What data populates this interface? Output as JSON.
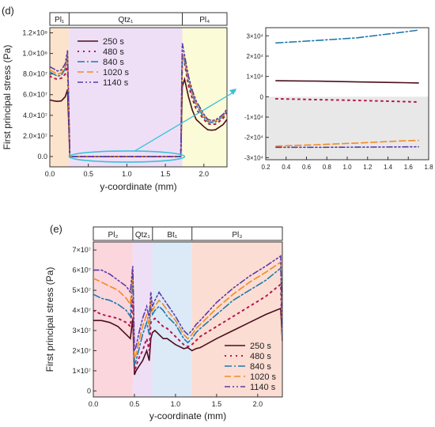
{
  "panels": [
    {
      "label": "(d)"
    },
    {
      "label": "(e)"
    }
  ],
  "colors": {
    "s250": "#4a0f1c",
    "s480": "#b5174e",
    "s840": "#1f79ad",
    "s1020": "#f28b22",
    "s1140": "#5a3aa8",
    "inset_arrow": "#3bc1d8",
    "pl_band": "#fbe3cc",
    "qtz_band": "#eedff7",
    "pl4_band": "#fbfbd8",
    "pl2_band": "#fbd6dd",
    "bt_band": "#dce9f7",
    "pl3_band": "#fbddd3",
    "inset_negative_region": "#e8e8e8"
  },
  "chart_data": [
    {
      "id": "d_main",
      "type": "line",
      "title": "",
      "xlabel": "y-coordinate (mm)",
      "ylabel": "First principal stress (Pa)",
      "xlim": [
        0,
        2.3
      ],
      "ylim": [
        -10000000.0,
        125000000.0
      ],
      "xticks": [
        0.0,
        0.5,
        1.0,
        1.5,
        2.0
      ],
      "xtick_labels": [
        "0.0",
        "0.5",
        "1.0",
        "1.5",
        "2.0"
      ],
      "yticks": [
        0,
        20000000.0,
        40000000.0,
        60000000.0,
        80000000.0,
        100000000.0,
        120000000.0
      ],
      "ytick_labels": [
        "0.0",
        "2.0×10⁷",
        "4.0×10⁷",
        "6.0×10⁷",
        "8.0×10⁷",
        "1.0×10⁸",
        "1.2×10⁸"
      ],
      "legend_position": "top-center",
      "grain_bar": [
        {
          "name": "Pl₁",
          "x0": 0.0,
          "x1": 0.25
        },
        {
          "name": "Qtz₁",
          "x0": 0.25,
          "x1": 1.72
        },
        {
          "name": "Pl₄",
          "x0": 1.72,
          "x1": 2.3
        }
      ],
      "series": [
        {
          "name": "250 s",
          "x": [
            0,
            0.05,
            0.1,
            0.15,
            0.2,
            0.23,
            0.26,
            0.3,
            1.0,
            1.7,
            1.72,
            1.75,
            1.8,
            1.85,
            1.9,
            2.0,
            2.05,
            2.1,
            2.15,
            2.2,
            2.25,
            2.3
          ],
          "y": [
            55000000.0,
            54000000.0,
            53500000.0,
            54000000.0,
            58000000.0,
            65000000.0,
            0,
            0,
            0,
            0,
            68000000.0,
            75000000.0,
            58000000.0,
            45000000.0,
            36000000.0,
            29000000.0,
            26000000.0,
            25500000.0,
            26000000.0,
            28500000.0,
            31000000.0,
            36000000.0
          ]
        },
        {
          "name": "480 s",
          "x": [
            0,
            0.05,
            0.1,
            0.15,
            0.2,
            0.23,
            0.26,
            0.3,
            1.0,
            1.7,
            1.72,
            1.75,
            1.8,
            1.85,
            1.9,
            2.0,
            2.05,
            2.1,
            2.15,
            2.2,
            2.25,
            2.3
          ],
          "y": [
            78000000.0,
            76000000.0,
            75000000.0,
            76000000.0,
            80000000.0,
            90000000.0,
            0,
            0,
            0,
            0,
            93000000.0,
            90000000.0,
            69000000.0,
            56000000.0,
            46000000.0,
            36000000.0,
            32000000.0,
            31000000.0,
            31500000.0,
            34000000.0,
            37000000.0,
            42000000.0
          ]
        },
        {
          "name": "840 s",
          "x": [
            0,
            0.05,
            0.1,
            0.15,
            0.2,
            0.23,
            0.26,
            0.3,
            1.0,
            1.7,
            1.72,
            1.75,
            1.8,
            1.85,
            1.9,
            2.0,
            2.05,
            2.1,
            2.15,
            2.2,
            2.25,
            2.3
          ],
          "y": [
            82000000.0,
            80000000.0,
            78000000.0,
            79000000.0,
            85000000.0,
            98000000.0,
            0,
            0,
            0,
            0,
            98000000.0,
            93000000.0,
            73000000.0,
            60000000.0,
            50000000.0,
            38000000.0,
            34000000.0,
            33000000.0,
            33500000.0,
            36000000.0,
            39000000.0,
            44000000.0
          ]
        },
        {
          "name": "1020 s",
          "x": [
            0,
            0.05,
            0.1,
            0.15,
            0.2,
            0.23,
            0.26,
            0.3,
            1.0,
            1.7,
            1.72,
            1.75,
            1.8,
            1.85,
            1.9,
            2.0,
            2.05,
            2.1,
            2.15,
            2.2,
            2.25,
            2.3
          ],
          "y": [
            84000000.0,
            82000000.0,
            80000000.0,
            81000000.0,
            87000000.0,
            100000000.0,
            0,
            0,
            0,
            0,
            100000000.0,
            95000000.0,
            75000000.0,
            62000000.0,
            52000000.0,
            40000000.0,
            35000000.0,
            34000000.0,
            34500000.0,
            37000000.0,
            40000000.0,
            45000000.0
          ]
        },
        {
          "name": "1140 s",
          "x": [
            0,
            0.05,
            0.1,
            0.15,
            0.2,
            0.23,
            0.26,
            0.3,
            1.0,
            1.7,
            1.72,
            1.75,
            1.8,
            1.85,
            1.9,
            2.0,
            2.05,
            2.1,
            2.15,
            2.2,
            2.25,
            2.3
          ],
          "y": [
            87000000.0,
            85000000.0,
            83000000.0,
            84000000.0,
            90000000.0,
            103000000.0,
            0,
            0,
            0,
            0,
            110000000.0,
            98000000.0,
            78000000.0,
            64000000.0,
            54000000.0,
            41000000.0,
            36000000.0,
            35000000.0,
            35500000.0,
            38000000.0,
            41000000.0,
            46000000.0
          ]
        }
      ]
    },
    {
      "id": "d_inset",
      "type": "line",
      "title": "",
      "xlabel": "",
      "ylabel": "",
      "xlim": [
        0.2,
        1.8
      ],
      "ylim": [
        -31000.0,
        34000.0
      ],
      "xticks": [
        0.2,
        0.4,
        0.6,
        0.8,
        1.0,
        1.2,
        1.4,
        1.6,
        1.8
      ],
      "xtick_labels": [
        "0.2",
        "0.4",
        "0.6",
        "0.8",
        "1.0",
        "1.2",
        "1.4",
        "1.6",
        "1.8"
      ],
      "yticks": [
        -30000.0,
        -20000.0,
        -10000.0,
        0,
        10000.0,
        20000.0,
        30000.0
      ],
      "ytick_labels": [
        "-3×10⁴",
        "-2×10⁴",
        "-1×10⁴",
        "0",
        "1×10⁴",
        "2×10⁴",
        "3×10⁴"
      ],
      "series": [
        {
          "name": "250 s",
          "x": [
            0.3,
            0.7,
            1.1,
            1.5,
            1.7
          ],
          "y": [
            7900,
            7700,
            7300,
            7000,
            6800
          ]
        },
        {
          "name": "480 s",
          "x": [
            0.3,
            0.7,
            1.1,
            1.5,
            1.7
          ],
          "y": [
            -1000,
            -1400,
            -1800,
            -2300,
            -2600
          ]
        },
        {
          "name": "840 s",
          "x": [
            0.3,
            0.7,
            1.1,
            1.5,
            1.7
          ],
          "y": [
            26500,
            27700,
            29000,
            31500,
            32800
          ]
        },
        {
          "name": "1020 s",
          "x": [
            0.3,
            0.7,
            1.1,
            1.5,
            1.7
          ],
          "y": [
            -24300,
            -23600,
            -22800,
            -21800,
            -21500
          ]
        },
        {
          "name": "1140 s",
          "x": [
            0.3,
            0.7,
            1.1,
            1.5,
            1.7
          ],
          "y": [
            -24900,
            -24900,
            -24800,
            -24700,
            -24600
          ]
        }
      ]
    },
    {
      "id": "e_main",
      "type": "line",
      "title": "",
      "xlabel": "y-coordinate (mm)",
      "ylabel": "First principal stress (Pa)",
      "xlim": [
        0,
        2.3
      ],
      "ylim": [
        -3000000.0,
        74000000.0
      ],
      "xticks": [
        0.0,
        0.5,
        1.0,
        1.5,
        2.0
      ],
      "xtick_labels": [
        "0.0",
        "0.5",
        "1.0",
        "1.5",
        "2.0"
      ],
      "yticks": [
        0,
        10000000.0,
        20000000.0,
        30000000.0,
        40000000.0,
        50000000.0,
        60000000.0,
        70000000.0
      ],
      "ytick_labels": [
        "0",
        "1×10⁷",
        "2×10⁷",
        "3×10⁷",
        "4×10⁷",
        "5×10⁷",
        "6×10⁷",
        "7×10⁷"
      ],
      "legend_position": "bottom-right",
      "grain_bar": [
        {
          "name": "Pl₂",
          "x0": 0.0,
          "x1": 0.48
        },
        {
          "name": "Qtz₁",
          "x0": 0.48,
          "x1": 0.72
        },
        {
          "name": "Bt₁",
          "x0": 0.72,
          "x1": 1.2
        },
        {
          "name": "Pl₃",
          "x0": 1.2,
          "x1": 2.3
        }
      ],
      "series": [
        {
          "name": "250 s",
          "x": [
            0,
            0.1,
            0.2,
            0.3,
            0.4,
            0.45,
            0.48,
            0.5,
            0.52,
            0.55,
            0.6,
            0.65,
            0.68,
            0.7,
            0.72,
            0.75,
            0.8,
            0.85,
            0.9,
            1.0,
            1.1,
            1.15,
            1.2,
            1.25,
            1.3,
            1.5,
            1.7,
            1.9,
            2.1,
            2.28,
            2.3
          ],
          "y": [
            35000000.0,
            35000000.0,
            34000000.0,
            32000000.0,
            28000000.0,
            26000000.0,
            36000000.0,
            8000000.0,
            10000000.0,
            12000000.0,
            15000000.0,
            20000000.0,
            15000000.0,
            26000000.0,
            29000000.0,
            30000000.0,
            28000000.0,
            26000000.0,
            26000000.0,
            23000000.0,
            21000000.0,
            21500000.0,
            20000000.0,
            21000000.0,
            21500000.0,
            26000000.0,
            30000000.0,
            34000000.0,
            38000000.0,
            41000000.0,
            25000000.0
          ]
        },
        {
          "name": "480 s",
          "x": [
            0,
            0.1,
            0.2,
            0.3,
            0.4,
            0.45,
            0.48,
            0.5,
            0.52,
            0.55,
            0.6,
            0.65,
            0.68,
            0.7,
            0.72,
            0.75,
            0.8,
            0.85,
            0.9,
            1.0,
            1.1,
            1.15,
            1.2,
            1.25,
            1.3,
            1.5,
            1.7,
            1.9,
            2.1,
            2.28,
            2.3
          ],
          "y": [
            40000000.0,
            38000000.0,
            37000000.0,
            36000000.0,
            34000000.0,
            32000000.0,
            46000000.0,
            10000000.0,
            12000000.0,
            16000000.0,
            20000000.0,
            26000000.0,
            20000000.0,
            34000000.0,
            35000000.0,
            36000000.0,
            34000000.0,
            32000000.0,
            31000000.0,
            27000000.0,
            23000000.0,
            22000000.0,
            23000000.0,
            25000000.0,
            27000000.0,
            32000000.0,
            37000000.0,
            42000000.0,
            47000000.0,
            53000000.0,
            26000000.0
          ]
        },
        {
          "name": "840 s",
          "x": [
            0,
            0.1,
            0.2,
            0.3,
            0.4,
            0.45,
            0.48,
            0.5,
            0.52,
            0.55,
            0.6,
            0.65,
            0.68,
            0.7,
            0.72,
            0.75,
            0.8,
            0.85,
            0.9,
            1.0,
            1.1,
            1.15,
            1.2,
            1.25,
            1.3,
            1.5,
            1.7,
            1.9,
            2.1,
            2.28,
            2.3
          ],
          "y": [
            48000000.0,
            46000000.0,
            45000000.0,
            43000000.0,
            40000000.0,
            37000000.0,
            58000000.0,
            13000000.0,
            15000000.0,
            20000000.0,
            28000000.0,
            34000000.0,
            28000000.0,
            42000000.0,
            38000000.0,
            40000000.0,
            42000000.0,
            40000000.0,
            37000000.0,
            33000000.0,
            26000000.0,
            24000000.0,
            26000000.0,
            29000000.0,
            31000000.0,
            38000000.0,
            45000000.0,
            50000000.0,
            55000000.0,
            61000000.0,
            27000000.0
          ]
        },
        {
          "name": "1020 s",
          "x": [
            0,
            0.1,
            0.2,
            0.3,
            0.4,
            0.45,
            0.48,
            0.5,
            0.52,
            0.55,
            0.6,
            0.65,
            0.68,
            0.7,
            0.72,
            0.75,
            0.8,
            0.85,
            0.9,
            1.0,
            1.1,
            1.15,
            1.2,
            1.25,
            1.3,
            1.5,
            1.7,
            1.9,
            2.1,
            2.28,
            2.3
          ],
          "y": [
            56000000.0,
            54000000.0,
            52000000.0,
            50000000.0,
            46000000.0,
            43000000.0,
            60000000.0,
            16000000.0,
            18000000.0,
            24000000.0,
            32000000.0,
            38000000.0,
            32000000.0,
            46000000.0,
            40000000.0,
            42000000.0,
            45000000.0,
            43000000.0,
            40000000.0,
            35000000.0,
            28000000.0,
            26000000.0,
            28000000.0,
            31000000.0,
            33000000.0,
            41000000.0,
            48000000.0,
            54000000.0,
            59000000.0,
            64000000.0,
            28000000.0
          ]
        },
        {
          "name": "1140 s",
          "x": [
            0,
            0.1,
            0.2,
            0.3,
            0.4,
            0.45,
            0.48,
            0.5,
            0.52,
            0.55,
            0.6,
            0.65,
            0.68,
            0.7,
            0.72,
            0.75,
            0.8,
            0.85,
            0.9,
            1.0,
            1.1,
            1.15,
            1.2,
            1.25,
            1.3,
            1.5,
            1.7,
            1.9,
            2.1,
            2.28,
            2.3
          ],
          "y": [
            60000000.0,
            60000000.0,
            58000000.0,
            55000000.0,
            52000000.0,
            49000000.0,
            62000000.0,
            20000000.0,
            22000000.0,
            28000000.0,
            36000000.0,
            42000000.0,
            36000000.0,
            49000000.0,
            42000000.0,
            45000000.0,
            49000000.0,
            46000000.0,
            43000000.0,
            37000000.0,
            30000000.0,
            28000000.0,
            30000000.0,
            33000000.0,
            35000000.0,
            44000000.0,
            51000000.0,
            57000000.0,
            62000000.0,
            67000000.0,
            29000000.0
          ]
        }
      ]
    }
  ]
}
